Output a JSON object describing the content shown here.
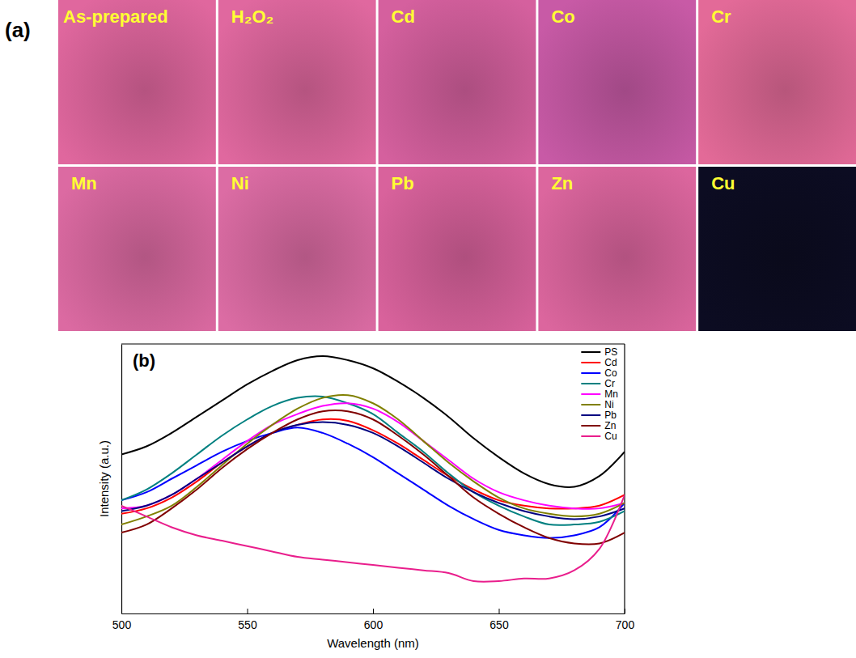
{
  "photo_panel": {
    "label": "(a)",
    "tiles": [
      {
        "label": "As-prepared",
        "color": "#e0679e"
      },
      {
        "label": "H₂O₂",
        "color": "#e0689f"
      },
      {
        "label": "Cd",
        "color": "#d5609e"
      },
      {
        "label": "Co",
        "color": "#c85aa6"
      },
      {
        "label": "Cr",
        "color": "#e36a98"
      },
      {
        "label": "Mn",
        "color": "#dc6aa2"
      },
      {
        "label": "Ni",
        "color": "#dc6ca4"
      },
      {
        "label": "Pb",
        "color": "#d9629c"
      },
      {
        "label": "Zn",
        "color": "#dc669e"
      },
      {
        "label": "Cu",
        "color": "#0c0c22"
      }
    ]
  },
  "chart_data": {
    "type": "line",
    "annotations": [
      "(b)"
    ],
    "x_label": "Wavelength (nm)",
    "y_label": "Intensity (a.u.)",
    "x": [
      500,
      510,
      520,
      530,
      540,
      550,
      560,
      570,
      580,
      590,
      600,
      610,
      620,
      630,
      640,
      650,
      660,
      670,
      680,
      690,
      700
    ],
    "xlim": [
      500,
      700
    ],
    "xticks": [
      500,
      550,
      600,
      650,
      700
    ],
    "ylim": [
      0,
      100
    ],
    "tick_labels": "x",
    "legend": "upper right",
    "series": [
      {
        "name": "PS",
        "color": "#000000",
        "values": [
          59,
          62,
          67,
          73,
          79,
          85,
          90,
          94,
          95.5,
          94,
          91,
          86,
          80,
          73,
          65,
          58,
          52,
          48,
          47,
          51,
          60
        ]
      },
      {
        "name": "Cd",
        "color": "#ff0000",
        "values": [
          37,
          39,
          43,
          49,
          56,
          62,
          67,
          70,
          72,
          71.5,
          68,
          63,
          57,
          51,
          46,
          42,
          40,
          39,
          39,
          40,
          44
        ]
      },
      {
        "name": "Co",
        "color": "#0000ff",
        "values": [
          42,
          45,
          50,
          55,
          60,
          64,
          67,
          69,
          67,
          63,
          58,
          52,
          46,
          40,
          35,
          31,
          29,
          28,
          29,
          32,
          41
        ]
      },
      {
        "name": "Cr",
        "color": "#008080",
        "values": [
          42,
          46,
          52,
          59,
          66,
          72,
          77,
          80,
          80.5,
          78,
          74,
          67,
          60,
          52,
          45,
          40,
          36,
          33,
          33,
          34,
          38
        ]
      },
      {
        "name": "Mn",
        "color": "#ff00ff",
        "values": [
          39,
          40,
          44,
          50,
          57,
          64,
          70,
          74,
          77,
          78,
          76,
          71,
          64,
          57,
          50,
          45,
          42,
          40,
          39,
          39,
          41
        ]
      },
      {
        "name": "Ni",
        "color": "#808000",
        "values": [
          33,
          36,
          40,
          47,
          55,
          63,
          70,
          76,
          80,
          81,
          78,
          72,
          64,
          56,
          49,
          43,
          39,
          37,
          36,
          37,
          41
        ]
      },
      {
        "name": "Pb",
        "color": "#000080",
        "values": [
          38,
          40,
          44,
          50,
          56,
          62,
          67,
          70,
          71,
          70,
          67,
          62,
          56,
          50,
          45,
          41,
          38,
          36,
          35,
          36,
          39
        ]
      },
      {
        "name": "Zn",
        "color": "#800000",
        "values": [
          30,
          33,
          39,
          46,
          54,
          61,
          67,
          72,
          75,
          75,
          72,
          66,
          59,
          51,
          43,
          37,
          32,
          28,
          26,
          26,
          30
        ]
      },
      {
        "name": "Cu",
        "color": "#e91e8c",
        "values": [
          40,
          36,
          32,
          29,
          27,
          25,
          23,
          21,
          20,
          19,
          18,
          17,
          16,
          15,
          12,
          12,
          13,
          13,
          16,
          24,
          44
        ]
      }
    ]
  }
}
